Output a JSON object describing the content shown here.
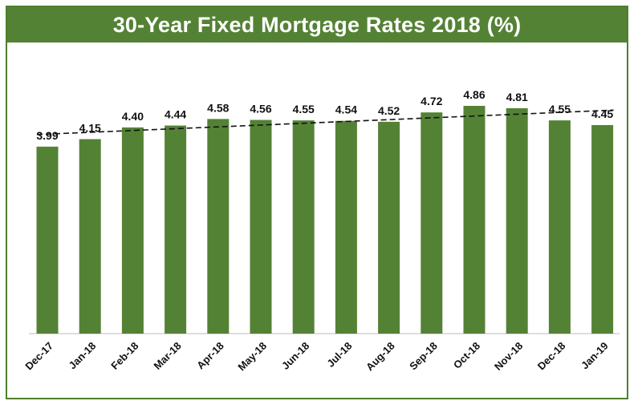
{
  "chart_data": {
    "type": "bar",
    "title": "30-Year Fixed Mortgage Rates 2018 (%)",
    "categories": [
      "Dec-17",
      "Jan-18",
      "Feb-18",
      "Mar-18",
      "Apr-18",
      "May-18",
      "Jun-18",
      "Jul-18",
      "Aug-18",
      "Sep-18",
      "Oct-18",
      "Nov-18",
      "Dec-18",
      "Jan-19"
    ],
    "values": [
      3.99,
      4.15,
      4.4,
      4.44,
      4.58,
      4.56,
      4.55,
      4.54,
      4.52,
      4.72,
      4.86,
      4.81,
      4.55,
      4.45
    ],
    "value_labels": [
      "3.99",
      "4.15",
      "4.40",
      "4.44",
      "4.58",
      "4.56",
      "4.55",
      "4.54",
      "4.52",
      "4.72",
      "4.86",
      "4.81",
      "4.55",
      "4.45"
    ],
    "trendline": "linear",
    "trendline_style": "dashed",
    "ylim": [
      0,
      5.2
    ],
    "grid": false,
    "xlabel": "",
    "ylabel": "",
    "bar_color": "#548235",
    "title_bg_color": "#548235",
    "title_text_color": "#ffffff",
    "trendline_color": "#111111"
  }
}
